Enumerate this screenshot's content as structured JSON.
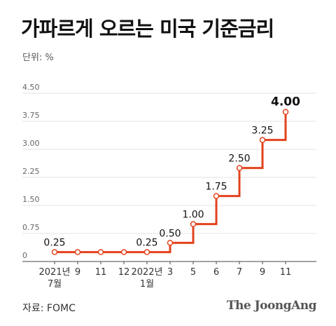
{
  "header": {
    "title": "가파르게 오르는 미국 기준금리",
    "unit": "단위: %"
  },
  "footer": {
    "source": "자료: FOMC",
    "brand": "The JoongAng"
  },
  "chart_data": {
    "type": "line",
    "title": "가파르게 오르는 미국 기준금리",
    "ylabel": "단위: %",
    "ylim": [
      0,
      4.5
    ],
    "yticks": [
      "0",
      "0.75",
      "1.50",
      "2.25",
      "3.00",
      "3.75",
      "4.50"
    ],
    "ytick_values": [
      0,
      0.75,
      1.5,
      2.25,
      3.0,
      3.75,
      4.5
    ],
    "xtick_labels": [
      {
        "top": "2021년",
        "bottom": "7월"
      },
      {
        "top": "9",
        "bottom": ""
      },
      {
        "top": "11",
        "bottom": ""
      },
      {
        "top": "12",
        "bottom": ""
      },
      {
        "top": "2022년",
        "bottom": "1월"
      },
      {
        "top": "3",
        "bottom": ""
      },
      {
        "top": "5",
        "bottom": ""
      },
      {
        "top": "6",
        "bottom": ""
      },
      {
        "top": "7",
        "bottom": ""
      },
      {
        "top": "9",
        "bottom": ""
      },
      {
        "top": "11",
        "bottom": ""
      }
    ],
    "series": [
      {
        "values": [
          0.25,
          0.25,
          0.25,
          0.25,
          0.25,
          0.5,
          1.0,
          1.75,
          2.5,
          3.25,
          4.0
        ],
        "labels": [
          "0.25",
          "",
          "",
          "",
          "0.25",
          "0.50",
          "1.00",
          "1.75",
          "2.50",
          "3.25",
          "4.00"
        ],
        "style": "step"
      }
    ],
    "grid": true,
    "colors": {
      "line": "#e2431e",
      "marker_fill": "#ffffff",
      "grid": "#e3e3e3",
      "axis": "#444444"
    }
  }
}
